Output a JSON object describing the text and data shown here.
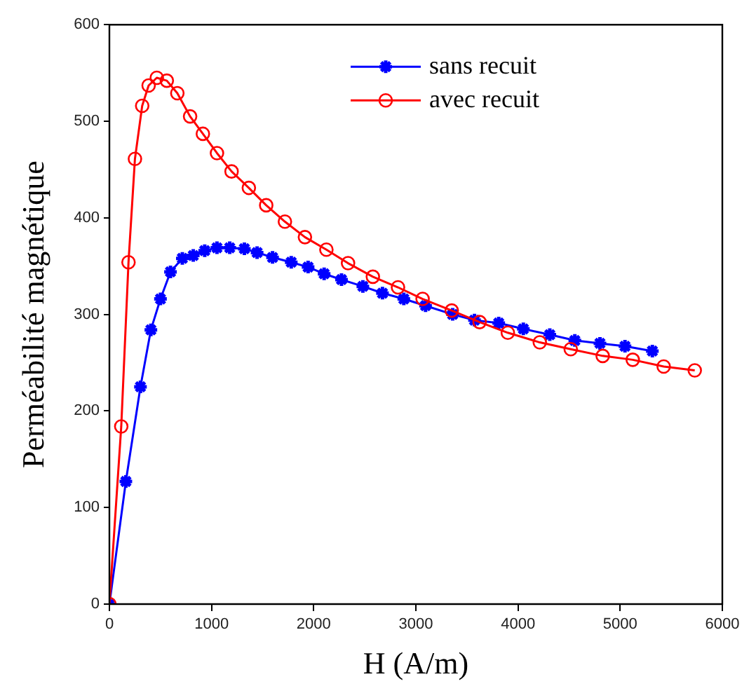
{
  "chart_data": {
    "type": "line",
    "xlabel": "H (A/m)",
    "ylabel": "Perméabilité magnétique",
    "xlim": [
      0,
      6000
    ],
    "xticks": [
      0,
      1000,
      2000,
      3000,
      4000,
      5000,
      6000
    ],
    "ylim": [
      0,
      600
    ],
    "yticks": [
      0,
      100,
      200,
      300,
      400,
      500,
      600
    ],
    "grid": false,
    "legend": "top right",
    "line_style": "solid",
    "series": [
      {
        "name": "sans recuit",
        "color": "#0000ff",
        "marker": "cross",
        "x": [
          0,
          161,
          304,
          406,
          500,
          598,
          714,
          821,
          933,
          1053,
          1178,
          1321,
          1446,
          1597,
          1780,
          1945,
          2102,
          2272,
          2481,
          2673,
          2882,
          3095,
          3360,
          3574,
          3811,
          4052,
          4311,
          4556,
          4802,
          5047,
          5315
        ],
        "values": [
          0,
          127,
          225,
          284,
          316,
          344,
          358,
          361,
          366,
          369,
          369,
          368,
          364,
          359,
          354,
          349,
          342,
          336,
          329,
          322,
          316,
          309,
          300,
          294,
          291,
          285,
          279,
          273,
          270,
          267,
          262
        ]
      },
      {
        "name": "avec recuit",
        "color": "#ff0000",
        "marker": "circle",
        "x": [
          0,
          116,
          187,
          250,
          321,
          384,
          464,
          562,
          665,
          790,
          915,
          1053,
          1196,
          1365,
          1535,
          1718,
          1914,
          2124,
          2336,
          2579,
          2825,
          3066,
          3351,
          3624,
          3900,
          4213,
          4516,
          4829,
          5123,
          5426,
          5730
        ],
        "values": [
          0,
          184,
          354,
          461,
          516,
          537,
          545,
          542,
          529,
          505,
          487,
          467,
          448,
          431,
          413,
          396,
          380,
          367,
          353,
          339,
          328,
          316,
          304,
          292,
          281,
          271,
          264,
          257,
          253,
          246,
          242
        ]
      }
    ]
  }
}
